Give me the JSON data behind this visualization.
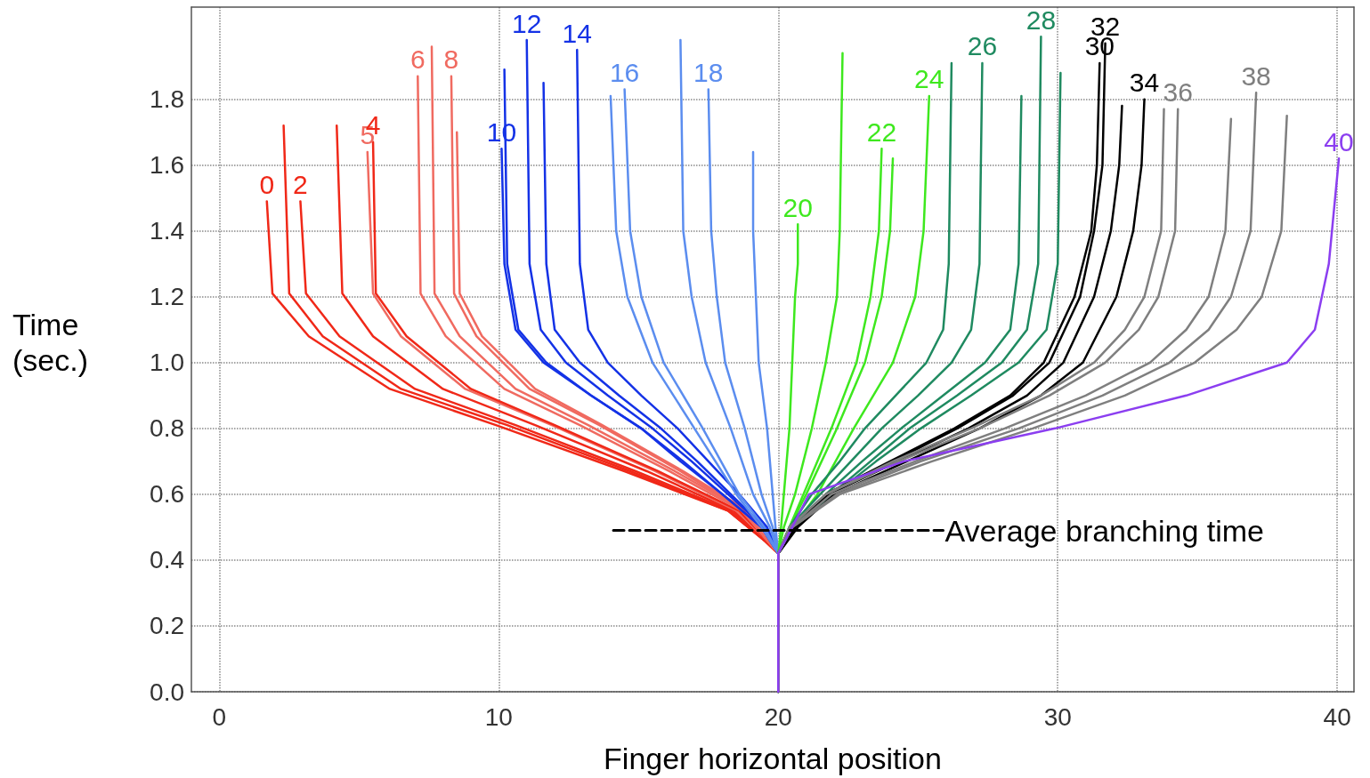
{
  "chart_data": {
    "type": "line",
    "xlabel": "Finger horizontal position",
    "ylabel": "Time (sec.)",
    "xlim": [
      -1,
      40.6
    ],
    "ylim": [
      0,
      2.08
    ],
    "xticks": [
      0,
      10,
      20,
      30,
      40
    ],
    "yticks": [
      {
        "value": 0,
        "label": "0.0"
      },
      0.2,
      0.4,
      0.6,
      0.8,
      {
        "value": 1,
        "label": "1.0"
      },
      1.2,
      1.4,
      1.6,
      1.8
    ],
    "grid": true,
    "marker": "none",
    "series": [
      {
        "name": "0",
        "color": "#f02818",
        "x": [
          20,
          20,
          19.5,
          18.2,
          14.5,
          9.9,
          6.1,
          3.2,
          1.9,
          1.7
        ],
        "values": [
          0,
          0.42,
          0.46,
          0.55,
          0.67,
          0.81,
          0.92,
          1.08,
          1.21,
          1.49
        ]
      },
      {
        "color": "#f02818",
        "x": [
          20,
          20,
          19.5,
          18.2,
          14.7,
          10.3,
          6.5,
          3.7,
          2.5,
          2.3
        ],
        "values": [
          0,
          0.42,
          0.46,
          0.55,
          0.67,
          0.81,
          0.92,
          1.08,
          1.21,
          1.72
        ]
      },
      {
        "name": "2",
        "color": "#f02818",
        "x": [
          20,
          20,
          19.5,
          18.3,
          14.9,
          10.6,
          7.0,
          4.3,
          3.1,
          2.9
        ],
        "values": [
          0,
          0.42,
          0.46,
          0.55,
          0.67,
          0.81,
          0.92,
          1.08,
          1.21,
          1.49
        ]
      },
      {
        "color": "#f02818",
        "x": [
          20,
          20,
          19.5,
          18.4,
          15.3,
          11.3,
          8.0,
          5.5,
          4.4,
          4.2
        ],
        "values": [
          0,
          0.42,
          0.46,
          0.55,
          0.67,
          0.81,
          0.92,
          1.08,
          1.21,
          1.72
        ]
      },
      {
        "name": "5",
        "color": "#f06a60",
        "x": [
          20,
          20,
          19.6,
          18.5,
          15.6,
          11.9,
          8.8,
          6.5,
          5.5,
          5.3
        ],
        "values": [
          0,
          0.42,
          0.46,
          0.55,
          0.67,
          0.81,
          0.92,
          1.08,
          1.21,
          1.64
        ]
      },
      {
        "name": "4",
        "color": "#f02818",
        "x": [
          20,
          20,
          19.6,
          18.6,
          15.7,
          12.0,
          9.0,
          6.7,
          5.6,
          5.5
        ],
        "values": [
          0,
          0.42,
          0.46,
          0.55,
          0.67,
          0.81,
          0.92,
          1.08,
          1.21,
          1.67
        ]
      },
      {
        "name": "6",
        "color": "#f06a60",
        "x": [
          20,
          20,
          19.6,
          18.7,
          16.1,
          12.9,
          10.2,
          8.1,
          7.2,
          7.1
        ],
        "values": [
          0,
          0.42,
          0.46,
          0.55,
          0.67,
          0.81,
          0.92,
          1.08,
          1.21,
          1.87
        ]
      },
      {
        "color": "#f06a60",
        "x": [
          20,
          20,
          19.6,
          18.8,
          16.3,
          13.2,
          10.6,
          8.6,
          7.7,
          7.6
        ],
        "values": [
          0,
          0.42,
          0.46,
          0.55,
          0.67,
          0.81,
          0.92,
          1.08,
          1.21,
          1.96
        ]
      },
      {
        "name": "8",
        "color": "#f06a60",
        "x": [
          20,
          20,
          19.6,
          18.8,
          16.5,
          13.6,
          11.1,
          9.2,
          8.4,
          8.3
        ],
        "values": [
          0,
          0.42,
          0.46,
          0.55,
          0.67,
          0.81,
          0.92,
          1.08,
          1.21,
          1.87
        ]
      },
      {
        "color": "#f06a60",
        "x": [
          20,
          20,
          19.7,
          18.9,
          16.6,
          13.7,
          11.3,
          9.4,
          8.6,
          8.5
        ],
        "values": [
          0,
          0.42,
          0.46,
          0.55,
          0.67,
          0.81,
          0.92,
          1.08,
          1.21,
          1.7
        ]
      },
      {
        "name": "10",
        "color": "#1432e6",
        "x": [
          20,
          20,
          19.4,
          18.0,
          16.5,
          15.1,
          13.3,
          11.6,
          10.6,
          10.2,
          10.1
        ],
        "values": [
          0,
          0.42,
          0.5,
          0.6,
          0.7,
          0.8,
          0.9,
          1.0,
          1.1,
          1.3,
          1.65
        ]
      },
      {
        "color": "#1432e6",
        "x": [
          20,
          20,
          19.4,
          18.0,
          16.6,
          15.1,
          13.3,
          11.7,
          10.7,
          10.3,
          10.2
        ],
        "values": [
          0,
          0.42,
          0.5,
          0.6,
          0.7,
          0.8,
          0.9,
          1.0,
          1.1,
          1.3,
          1.89
        ]
      },
      {
        "name": "12",
        "color": "#1432e6",
        "x": [
          20,
          20,
          19.5,
          18.2,
          16.9,
          15.5,
          13.9,
          12.4,
          11.5,
          11.1,
          11.0
        ],
        "values": [
          0,
          0.42,
          0.5,
          0.6,
          0.7,
          0.8,
          0.9,
          1.0,
          1.1,
          1.3,
          1.98
        ]
      },
      {
        "color": "#1432e6",
        "x": [
          20,
          20,
          19.5,
          18.3,
          17.1,
          15.8,
          14.3,
          12.9,
          12.0,
          11.7,
          11.6
        ],
        "values": [
          0,
          0.42,
          0.5,
          0.6,
          0.7,
          0.8,
          0.9,
          1.0,
          1.1,
          1.3,
          1.85
        ]
      },
      {
        "name": "14",
        "color": "#1432e6",
        "x": [
          20,
          20,
          19.6,
          18.6,
          17.5,
          16.4,
          15.1,
          13.9,
          13.2,
          12.9,
          12.8
        ],
        "values": [
          0,
          0.42,
          0.5,
          0.6,
          0.7,
          0.8,
          0.9,
          1.0,
          1.1,
          1.3,
          1.95
        ]
      },
      {
        "color": "#5b8def",
        "x": [
          20,
          20,
          19.4,
          18.5,
          17.0,
          15.5,
          14.6,
          14.2,
          14.0
        ],
        "values": [
          0,
          0.42,
          0.5,
          0.6,
          0.8,
          1.0,
          1.2,
          1.4,
          1.81
        ]
      },
      {
        "name": "16",
        "color": "#5b8def",
        "x": [
          20,
          20,
          19.5,
          18.6,
          17.3,
          15.9,
          15.1,
          14.7,
          14.5
        ],
        "values": [
          0,
          0.42,
          0.5,
          0.6,
          0.8,
          1.0,
          1.2,
          1.4,
          1.83
        ]
      },
      {
        "color": "#5b8def",
        "x": [
          20,
          20,
          19.7,
          19.1,
          18.3,
          17.4,
          16.9,
          16.6,
          16.5
        ],
        "values": [
          0,
          0.42,
          0.5,
          0.6,
          0.8,
          1.0,
          1.2,
          1.4,
          1.98
        ]
      },
      {
        "name": "18",
        "color": "#5b8def",
        "x": [
          20,
          20,
          19.8,
          19.4,
          18.8,
          18.1,
          17.8,
          17.6,
          17.5
        ],
        "values": [
          0,
          0.42,
          0.5,
          0.6,
          0.8,
          1.0,
          1.2,
          1.4,
          1.83
        ]
      },
      {
        "color": "#5b8def",
        "x": [
          20,
          20,
          19.9,
          19.8,
          19.6,
          19.3,
          19.2,
          19.1,
          19.1
        ],
        "values": [
          0,
          0.42,
          0.5,
          0.6,
          0.8,
          1.0,
          1.2,
          1.4,
          1.64
        ]
      },
      {
        "name": "20",
        "color": "#3ee81e",
        "x": [
          20,
          20,
          20.1,
          20.2,
          20.4,
          20.5,
          20.6,
          20.7,
          20.7
        ],
        "values": [
          0,
          0.42,
          0.5,
          0.6,
          0.8,
          1.0,
          1.2,
          1.3,
          1.42
        ]
      },
      {
        "color": "#3ee81e",
        "x": [
          20,
          20,
          20.2,
          20.6,
          21.2,
          21.7,
          22.1,
          22.2,
          22.3
        ],
        "values": [
          0,
          0.42,
          0.5,
          0.6,
          0.8,
          1.0,
          1.2,
          1.4,
          1.94
        ]
      },
      {
        "name": "22",
        "color": "#3ee81e",
        "x": [
          20,
          20,
          20.4,
          20.9,
          21.9,
          22.8,
          23.3,
          23.6,
          23.7
        ],
        "values": [
          0,
          0.42,
          0.5,
          0.6,
          0.8,
          1.0,
          1.2,
          1.4,
          1.65
        ]
      },
      {
        "color": "#3ee81e",
        "x": [
          20,
          20,
          20.4,
          21.0,
          22.1,
          23.1,
          23.7,
          24.0,
          24.1
        ],
        "values": [
          0,
          0.42,
          0.5,
          0.6,
          0.8,
          1.0,
          1.2,
          1.4,
          1.62
        ]
      },
      {
        "name": "24",
        "color": "#3ee81e",
        "x": [
          20,
          20,
          20.5,
          21.4,
          22.7,
          24.1,
          24.9,
          25.2,
          25.4
        ],
        "values": [
          0,
          0.42,
          0.5,
          0.6,
          0.8,
          1.0,
          1.2,
          1.4,
          1.81
        ]
      },
      {
        "color": "#1f8a60",
        "x": [
          20,
          20,
          20.4,
          21.2,
          22.2,
          23.1,
          24.2,
          25.3,
          25.9,
          26.1,
          26.2
        ],
        "values": [
          0,
          0.42,
          0.5,
          0.6,
          0.7,
          0.8,
          0.9,
          1.0,
          1.1,
          1.3,
          1.91
        ]
      },
      {
        "name": "26",
        "color": "#1f8a60",
        "x": [
          20,
          20,
          20.4,
          21.5,
          22.6,
          23.7,
          25.0,
          26.2,
          26.9,
          27.2,
          27.3
        ],
        "values": [
          0,
          0.42,
          0.5,
          0.6,
          0.7,
          0.8,
          0.9,
          1.0,
          1.1,
          1.3,
          1.91
        ]
      },
      {
        "color": "#1f8a60",
        "x": [
          20,
          20,
          20.5,
          21.7,
          23.0,
          24.4,
          25.9,
          27.4,
          28.3,
          28.6,
          28.7
        ],
        "values": [
          0,
          0.42,
          0.5,
          0.6,
          0.7,
          0.8,
          0.9,
          1.0,
          1.1,
          1.3,
          1.81
        ]
      },
      {
        "name": "28",
        "color": "#1f8a60",
        "x": [
          20,
          20,
          20.6,
          21.9,
          23.3,
          24.7,
          26.4,
          28.0,
          28.9,
          29.3,
          29.4
        ],
        "values": [
          0,
          0.42,
          0.5,
          0.6,
          0.7,
          0.8,
          0.9,
          1.0,
          1.1,
          1.3,
          1.99
        ]
      },
      {
        "color": "#1f8a60",
        "x": [
          20,
          20,
          20.6,
          22.0,
          23.5,
          25.1,
          26.9,
          28.6,
          29.6,
          30.0,
          30.1
        ],
        "values": [
          0,
          0.42,
          0.5,
          0.6,
          0.7,
          0.8,
          0.9,
          1.0,
          1.1,
          1.3,
          1.88
        ]
      },
      {
        "name": "30",
        "color": "#000000",
        "x": [
          20,
          20,
          20.6,
          21.7,
          24.0,
          26.3,
          28.3,
          29.5,
          30.6,
          31.2,
          31.4,
          31.5
        ],
        "values": [
          0,
          0.42,
          0.5,
          0.6,
          0.7,
          0.8,
          0.9,
          1.0,
          1.2,
          1.4,
          1.6,
          1.91
        ]
      },
      {
        "name": "32",
        "color": "#000000",
        "x": [
          20,
          20,
          20.6,
          21.8,
          24.1,
          26.4,
          28.4,
          29.7,
          30.8,
          31.3,
          31.6,
          31.7
        ],
        "values": [
          0,
          0.42,
          0.5,
          0.6,
          0.7,
          0.8,
          0.9,
          1.0,
          1.2,
          1.4,
          1.6,
          1.97
        ]
      },
      {
        "color": "#000000",
        "x": [
          20,
          20,
          20.6,
          21.8,
          24.3,
          26.8,
          28.9,
          30.2,
          31.3,
          31.9,
          32.2,
          32.3
        ],
        "values": [
          0,
          0.42,
          0.5,
          0.6,
          0.7,
          0.8,
          0.9,
          1.0,
          1.2,
          1.4,
          1.6,
          1.78
        ]
      },
      {
        "name": "34",
        "color": "#000000",
        "x": [
          20,
          20,
          20.7,
          22.0,
          24.6,
          27.2,
          29.4,
          30.9,
          32.1,
          32.7,
          33.0,
          33.1
        ],
        "values": [
          0,
          0.42,
          0.5,
          0.6,
          0.7,
          0.8,
          0.9,
          1.0,
          1.2,
          1.4,
          1.6,
          1.8
        ]
      },
      {
        "color": "#7f7f7f",
        "x": [
          20,
          20,
          20.4,
          21.7,
          24.1,
          26.9,
          29.4,
          31.3,
          32.4,
          33.1,
          33.7,
          33.8
        ],
        "values": [
          0,
          0.42,
          0.5,
          0.6,
          0.7,
          0.8,
          0.9,
          1.0,
          1.1,
          1.2,
          1.4,
          1.77
        ]
      },
      {
        "name": "36",
        "color": "#7f7f7f",
        "x": [
          20,
          20,
          20.4,
          21.7,
          24.3,
          27.2,
          29.7,
          31.7,
          32.9,
          33.6,
          34.2,
          34.3
        ],
        "values": [
          0,
          0.42,
          0.5,
          0.6,
          0.7,
          0.8,
          0.9,
          1.0,
          1.1,
          1.2,
          1.4,
          1.77
        ]
      },
      {
        "color": "#7f7f7f",
        "x": [
          20,
          20,
          20.5,
          21.9,
          24.9,
          28.1,
          31.0,
          33.3,
          34.6,
          35.4,
          36.0,
          36.2
        ],
        "values": [
          0,
          0.42,
          0.5,
          0.6,
          0.7,
          0.8,
          0.9,
          1.0,
          1.1,
          1.2,
          1.4,
          1.74
        ]
      },
      {
        "name": "38",
        "color": "#7f7f7f",
        "x": [
          20,
          20,
          20.5,
          22.1,
          25.1,
          28.6,
          31.6,
          34.0,
          35.4,
          36.2,
          36.9,
          37.1
        ],
        "values": [
          0,
          0.42,
          0.5,
          0.6,
          0.7,
          0.8,
          0.9,
          1.0,
          1.1,
          1.2,
          1.4,
          1.82
        ]
      },
      {
        "color": "#7f7f7f",
        "x": [
          20,
          20,
          20.5,
          22.2,
          25.5,
          29.1,
          32.4,
          34.9,
          36.4,
          37.3,
          38.0,
          38.2
        ],
        "values": [
          0,
          0.42,
          0.5,
          0.6,
          0.7,
          0.8,
          0.9,
          1.0,
          1.1,
          1.2,
          1.4,
          1.75
        ]
      },
      {
        "name": "40",
        "color": "#8b3ef0",
        "x": [
          20,
          20,
          20.5,
          21.1,
          24.5,
          29.9,
          34.6,
          38.2,
          39.2,
          39.7,
          40.06
        ],
        "values": [
          0,
          0.42,
          0.5,
          0.6,
          0.7,
          0.8,
          0.9,
          1.0,
          1.1,
          1.3,
          1.62
        ]
      },
      {
        "name": "Average branching time",
        "color": "#000000",
        "line_style": "dashed",
        "x": [
          14.1,
          25.9
        ],
        "values": [
          0.49,
          0.49
        ]
      }
    ]
  }
}
